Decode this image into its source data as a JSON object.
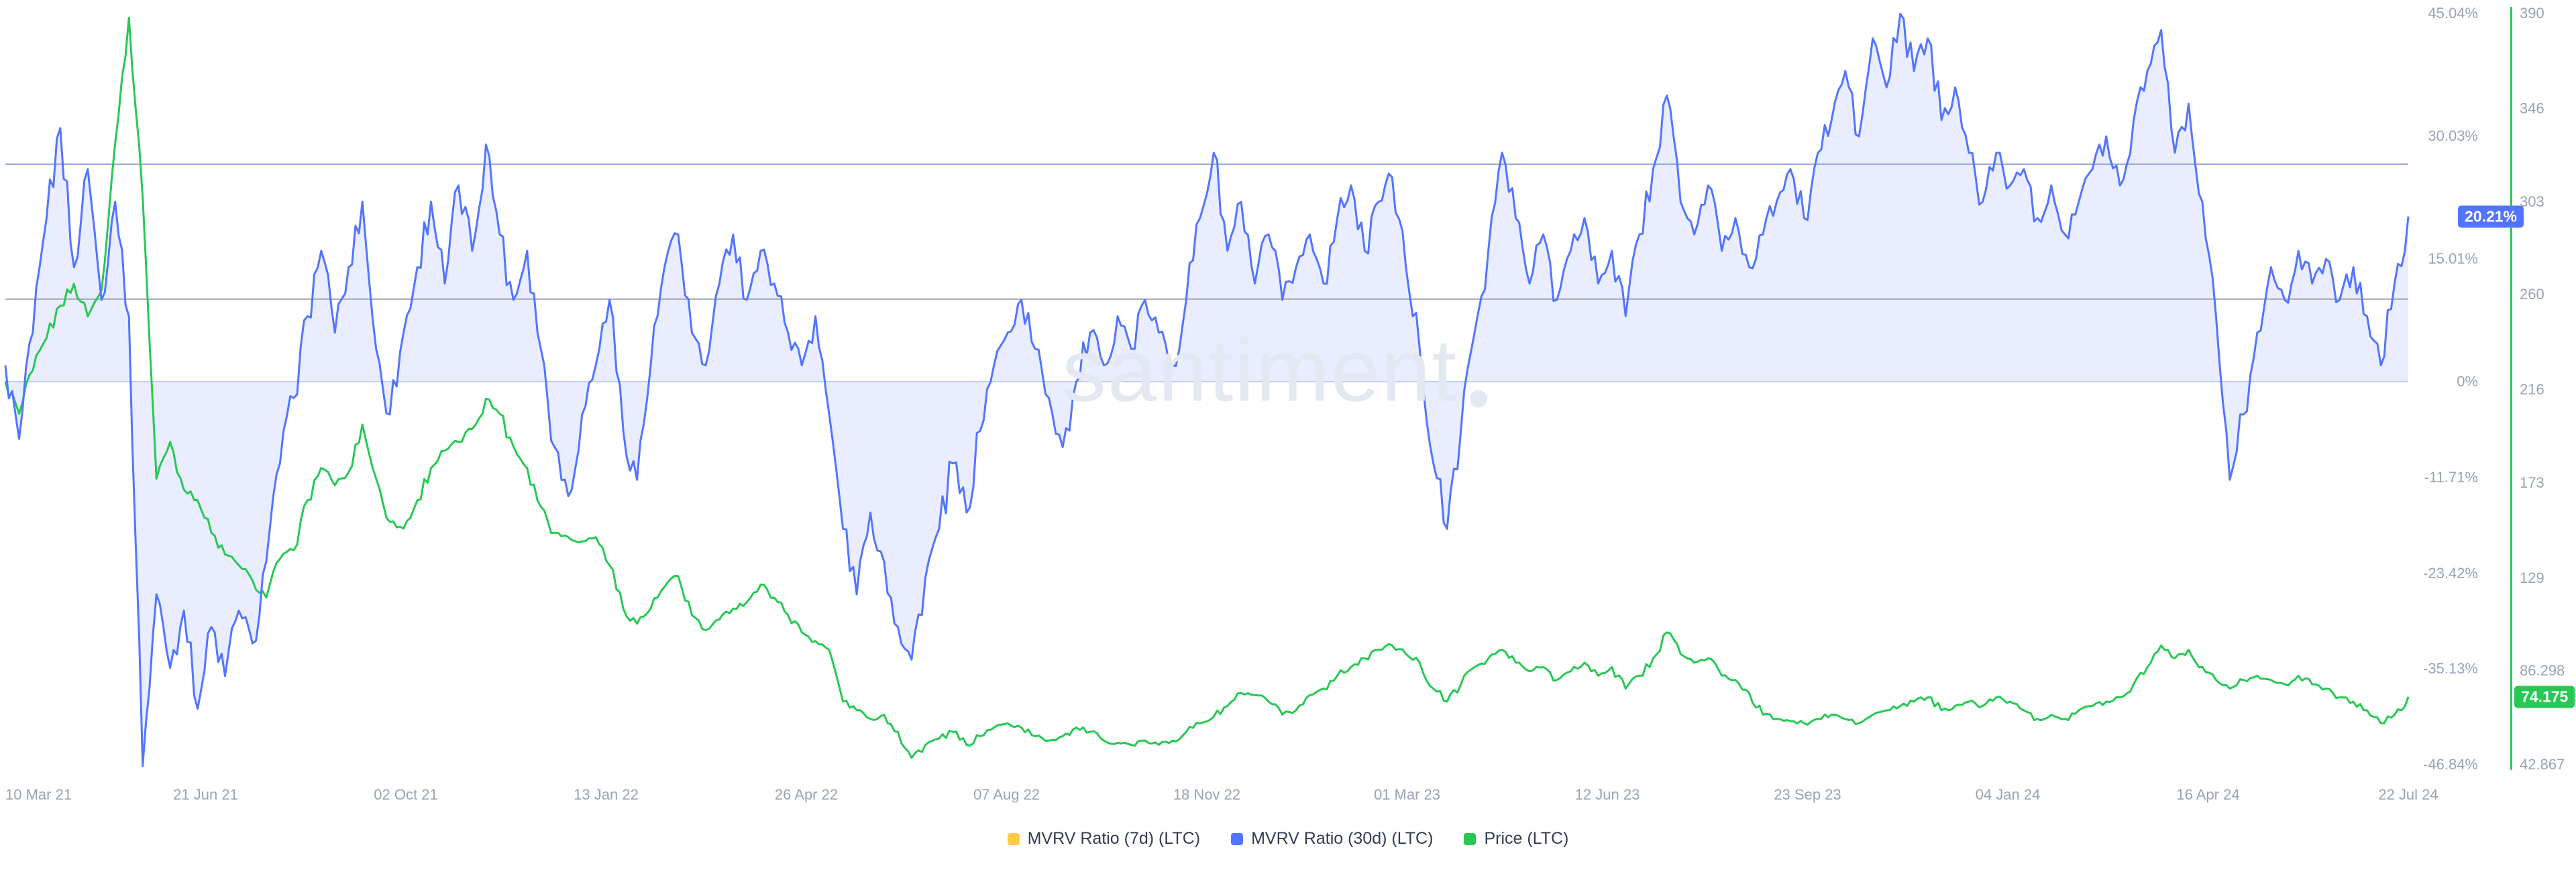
{
  "watermark": {
    "text": "santiment"
  },
  "badges": {
    "mvrv": {
      "text": "20.21%",
      "value": 20.21,
      "color": "#5275FF"
    },
    "price": {
      "text": "74.175",
      "value": 74.175,
      "color": "#26C953"
    }
  },
  "axes": {
    "x_labels": [
      "10 Mar 21",
      "21 Jun 21",
      "02 Oct 21",
      "13 Jan 22",
      "26 Apr 22",
      "07 Aug 22",
      "18 Nov 22",
      "01 Mar 23",
      "12 Jun 23",
      "23 Sep 23",
      "04 Jan 24",
      "16 Apr 24",
      "22 Jul 24"
    ],
    "percent_ticks": [
      "45.04%",
      "30.03%",
      "15.01%",
      "0%",
      "-11.71%",
      "-23.42%",
      "-35.13%",
      "-46.84%"
    ],
    "percent_tick_values": [
      45.04,
      30.03,
      15.01,
      0,
      -11.71,
      -23.42,
      -35.13,
      -46.84
    ],
    "price_ticks": [
      "390",
      "346",
      "303",
      "260",
      "216",
      "173",
      "129",
      "86.298",
      "42.867"
    ],
    "price_tick_values": [
      390,
      346,
      303,
      260,
      216,
      173,
      129,
      86.298,
      42.867
    ]
  },
  "legend": [
    {
      "id": "mvrv-7d",
      "label": "MVRV Ratio (7d) (LTC)",
      "color": "#FFCB47"
    },
    {
      "id": "mvrv-30d",
      "label": "MVRV Ratio (30d) (LTC)",
      "color": "#5275FF"
    },
    {
      "id": "price",
      "label": "Price (LTC)",
      "color": "#26C953"
    }
  ],
  "chart_data": {
    "type": "line",
    "title": "",
    "x_start": "10 Mar 21",
    "x_end": "22 Jul 24",
    "sampling": "weekly",
    "percent_axis_range": [
      -46.84,
      45.04
    ],
    "price_axis_range": [
      42.867,
      390
    ],
    "legend_position": "bottom-center",
    "grid": false,
    "reference_lines": [
      {
        "axis": "percent",
        "value": 26.6,
        "color": "#8b9bd9"
      },
      {
        "axis": "percent",
        "value": 10.1,
        "color": "#a3aabb"
      },
      {
        "axis": "percent",
        "value": 0,
        "color": "#bdd1f5"
      }
    ],
    "series": [
      {
        "name": "MVRV Ratio (7d) (LTC)",
        "axis": "percent",
        "color": "#FFCB47",
        "visible": false,
        "values": []
      },
      {
        "name": "MVRV Ratio (30d) (LTC)",
        "axis": "percent",
        "color": "#5275FF",
        "fill": "rgba(82,117,255,0.13)",
        "fill_baseline": 0,
        "last_value": 20.21,
        "values": [
          2,
          -7,
          6,
          20,
          31,
          14,
          26,
          10,
          22,
          8,
          -47,
          -26,
          -35,
          -28,
          -40,
          -30,
          -36,
          -28,
          -32,
          -22,
          -10,
          -2,
          8,
          16,
          6,
          14,
          22,
          4,
          -4,
          6,
          14,
          22,
          12,
          24,
          16,
          29,
          18,
          10,
          16,
          4,
          -8,
          -14,
          -4,
          2,
          10,
          -6,
          -12,
          2,
          14,
          18,
          6,
          2,
          12,
          18,
          10,
          16,
          12,
          6,
          2,
          8,
          -4,
          -18,
          -26,
          -16,
          -22,
          -30,
          -34,
          -24,
          -18,
          -10,
          -16,
          -6,
          2,
          6,
          10,
          4,
          -2,
          -8,
          0,
          6,
          2,
          8,
          4,
          10,
          6,
          2,
          10,
          20,
          28,
          16,
          22,
          12,
          18,
          10,
          14,
          18,
          12,
          20,
          24,
          16,
          22,
          25,
          14,
          4,
          -10,
          -18,
          -6,
          6,
          16,
          28,
          20,
          12,
          18,
          10,
          16,
          20,
          12,
          16,
          8,
          18,
          26,
          35,
          22,
          18,
          24,
          16,
          20,
          14,
          18,
          22,
          26,
          20,
          28,
          32,
          38,
          30,
          42,
          36,
          45,
          38,
          42,
          32,
          36,
          28,
          22,
          28,
          24,
          26,
          20,
          24,
          18,
          22,
          26,
          30,
          24,
          32,
          38,
          43,
          28,
          34,
          22,
          8,
          -12,
          -4,
          6,
          14,
          10,
          16,
          12,
          15,
          10,
          14,
          8,
          2,
          12,
          20.21
        ]
      },
      {
        "name": "Price (LTC)",
        "axis": "price",
        "color": "#26C953",
        "last_value": 74.175,
        "values": [
          220,
          205,
          225,
          240,
          255,
          265,
          250,
          262,
          330,
          388,
          305,
          175,
          192,
          170,
          165,
          150,
          140,
          135,
          128,
          120,
          138,
          142,
          165,
          180,
          172,
          178,
          200,
          175,
          155,
          152,
          165,
          180,
          188,
          192,
          198,
          212,
          205,
          190,
          180,
          162,
          150,
          148,
          146,
          148,
          135,
          115,
          108,
          115,
          125,
          130,
          112,
          105,
          110,
          115,
          118,
          126,
          120,
          112,
          104,
          100,
          96,
          72,
          68,
          64,
          66,
          58,
          46,
          52,
          55,
          58,
          52,
          56,
          60,
          62,
          60,
          56,
          54,
          56,
          60,
          58,
          54,
          53,
          52,
          54,
          52,
          54,
          58,
          62,
          65,
          70,
          76,
          75,
          72,
          66,
          68,
          75,
          78,
          84,
          88,
          92,
          96,
          98,
          94,
          90,
          78,
          72,
          80,
          88,
          92,
          96,
          90,
          86,
          88,
          82,
          86,
          90,
          84,
          88,
          78,
          84,
          92,
          104,
          94,
          90,
          92,
          84,
          82,
          76,
          66,
          64,
          63,
          62,
          64,
          66,
          64,
          62,
          66,
          68,
          70,
          72,
          74,
          68,
          70,
          72,
          70,
          74,
          72,
          68,
          64,
          66,
          64,
          68,
          70,
          72,
          74,
          80,
          88,
          98,
          92,
          96,
          88,
          82,
          78,
          82,
          84,
          82,
          80,
          84,
          80,
          78,
          74,
          72,
          68,
          62,
          66,
          74.175
        ]
      }
    ]
  }
}
